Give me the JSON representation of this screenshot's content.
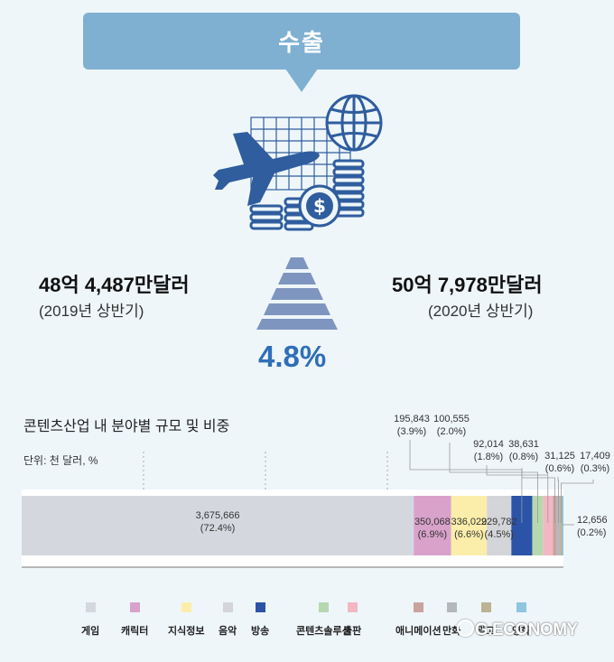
{
  "header": {
    "title": "수출"
  },
  "left": {
    "amount": "48억 4,487만달러",
    "period": "(2019년 상반기)"
  },
  "right": {
    "amount": "50억 7,978만달러",
    "period": "(2020년 상반기)"
  },
  "growth": "4.8%",
  "chart_data": {
    "type": "bar",
    "stacked": true,
    "orientation": "horizontal",
    "title": "콘텐츠산업 내 분야별 규모 및 비중",
    "unit_label": "단위: 천 달러, %",
    "segments": [
      {
        "name": "게임",
        "value": 3675666,
        "value_label": "3,675,666",
        "share_label": "(72.4%)",
        "color": "#d4d8de"
      },
      {
        "name": "캐릭터",
        "value": 350068,
        "value_label": "350,068",
        "share_label": "(6.9%)",
        "color": "#d9a2cb"
      },
      {
        "name": "지식정보",
        "value": 336029,
        "value_label": "336,029",
        "share_label": "(6.6%)",
        "color": "#fbeeaa"
      },
      {
        "name": "음악",
        "value": 229782,
        "value_label": "229,782",
        "share_label": "(4.5%)",
        "color": "#d4d5d8"
      },
      {
        "name": "방송",
        "value": 195843,
        "value_label": "195,843",
        "share_label": "(3.9%)",
        "color": "#2b54a8"
      },
      {
        "name": "콘텐츠솔루션",
        "value": 100555,
        "value_label": "100,555",
        "share_label": "(2.0%)",
        "color": "#b6d8b0"
      },
      {
        "name": "출판",
        "value": 92014,
        "value_label": "92,014",
        "share_label": "(1.8%)",
        "color": "#f3b7c3"
      },
      {
        "name": "애니메이션",
        "value": 38631,
        "value_label": "38,631",
        "share_label": "(0.8%)",
        "color": "#c9a39d"
      },
      {
        "name": "만화",
        "value": 31125,
        "value_label": "31,125",
        "share_label": "(0.6%)",
        "color": "#b5b8bb"
      },
      {
        "name": "광고",
        "value": 17409,
        "value_label": "17,409",
        "share_label": "(0.3%)",
        "color": "#bdb394"
      },
      {
        "name": "영화",
        "value": 12656,
        "value_label": "12,656",
        "share_label": "(0.2%)",
        "color": "#8ec5df"
      }
    ]
  },
  "watermark": "G.ECONOMY"
}
